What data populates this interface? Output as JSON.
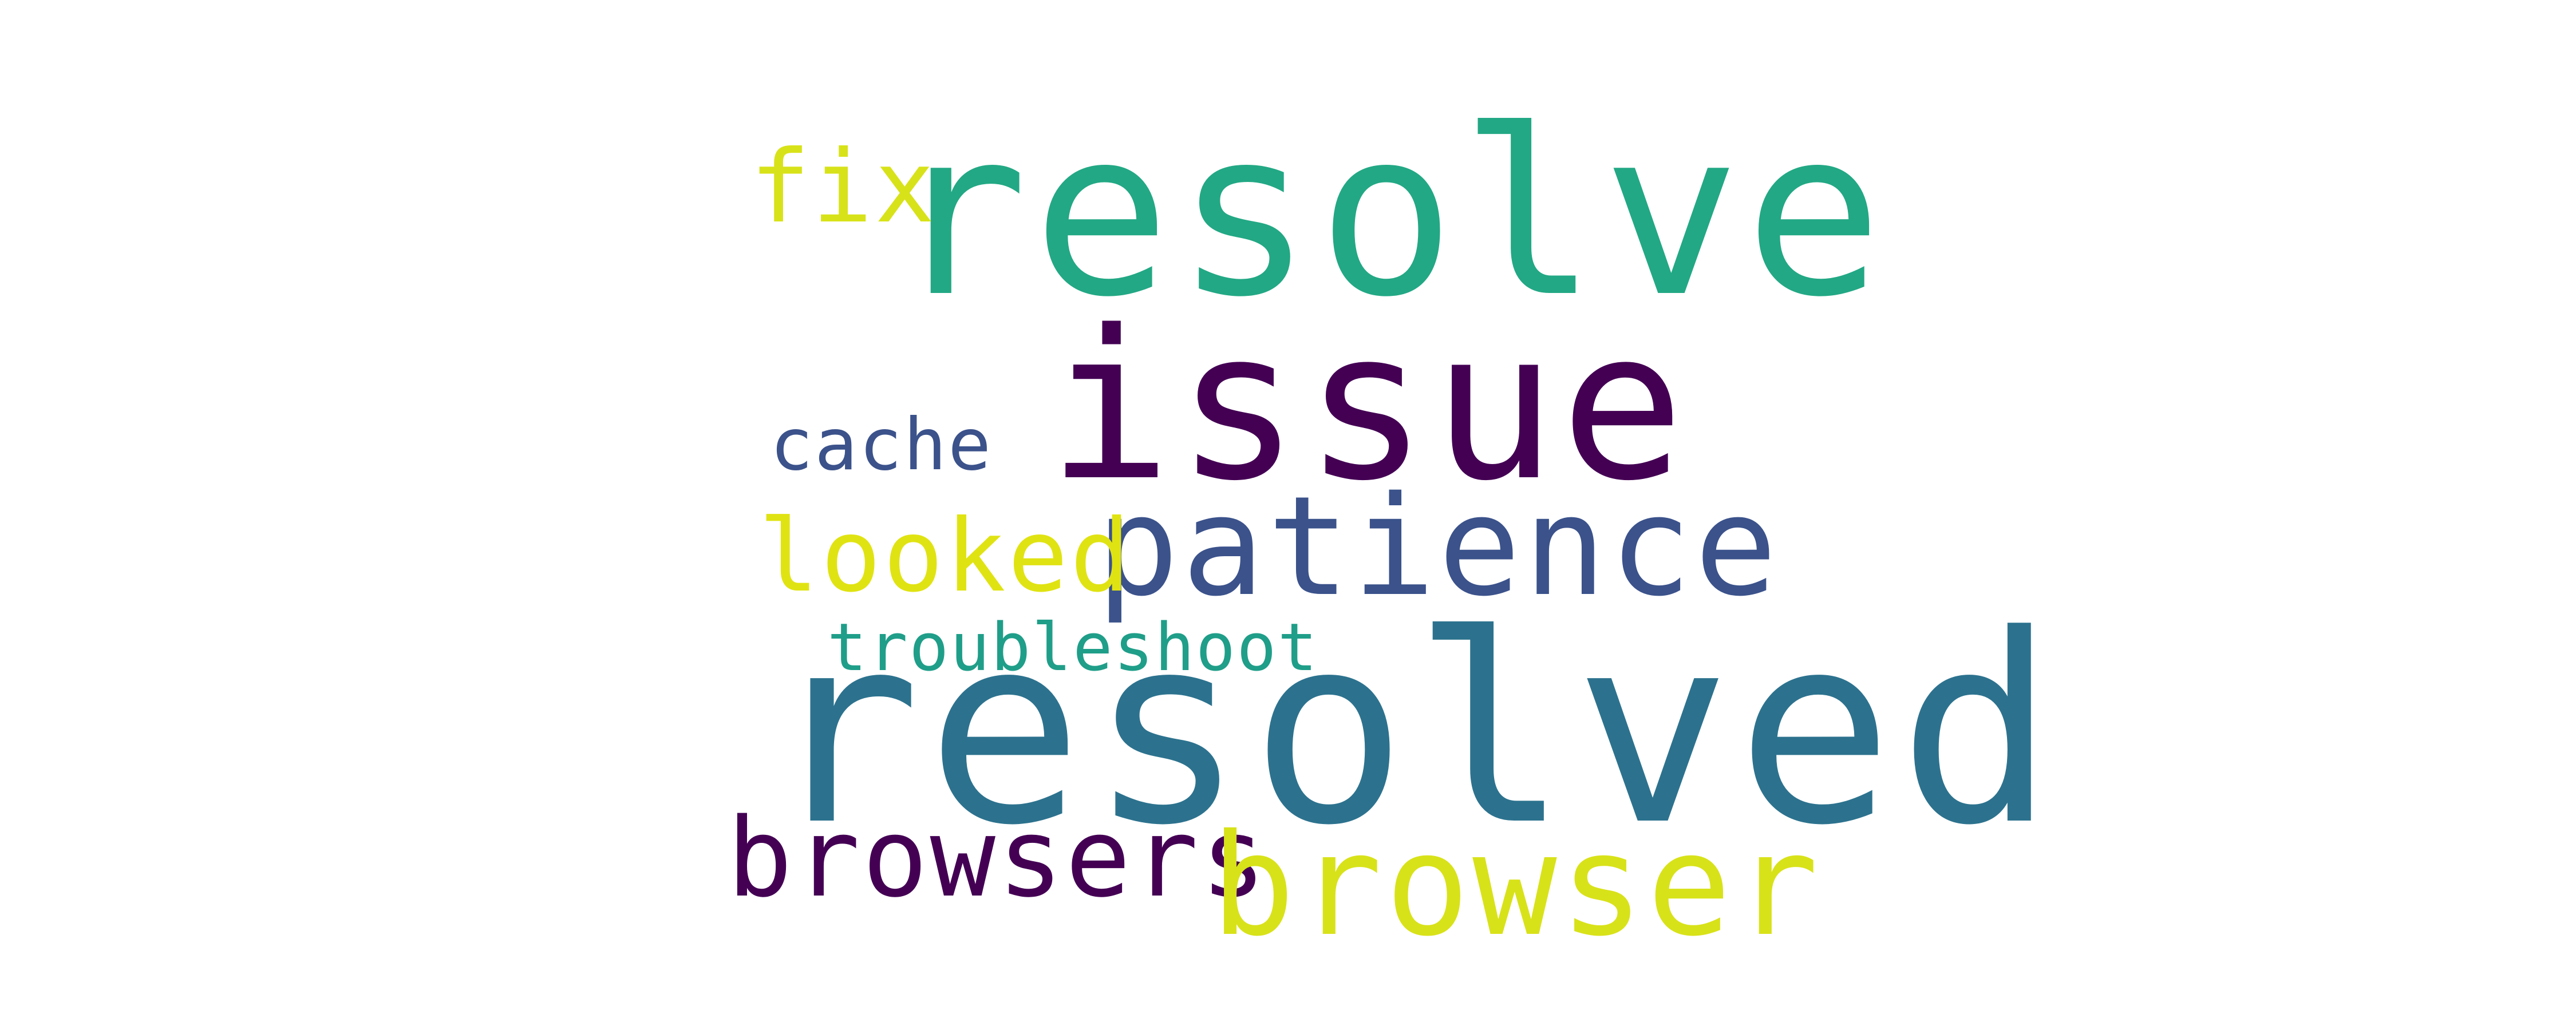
{
  "word_cloud": {
    "background": "#ffffff",
    "words": [
      {
        "id": "resolve",
        "text": "resolve",
        "color": "#22a884"
      },
      {
        "id": "fix",
        "text": "fix",
        "color": "#d8e219"
      },
      {
        "id": "issue",
        "text": "issue",
        "color": "#440154"
      },
      {
        "id": "cache",
        "text": "cache",
        "color": "#3b528b"
      },
      {
        "id": "patience",
        "text": "patience",
        "color": "#3b528b"
      },
      {
        "id": "looked",
        "text": "looked",
        "color": "#e0e312"
      },
      {
        "id": "troubleshoot",
        "text": "troubleshoot",
        "color": "#1f9e89"
      },
      {
        "id": "resolved",
        "text": "resolved",
        "color": "#2c728e"
      },
      {
        "id": "browsers",
        "text": "browsers",
        "color": "#440154"
      },
      {
        "id": "browser",
        "text": "browser",
        "color": "#d8e219"
      }
    ]
  }
}
